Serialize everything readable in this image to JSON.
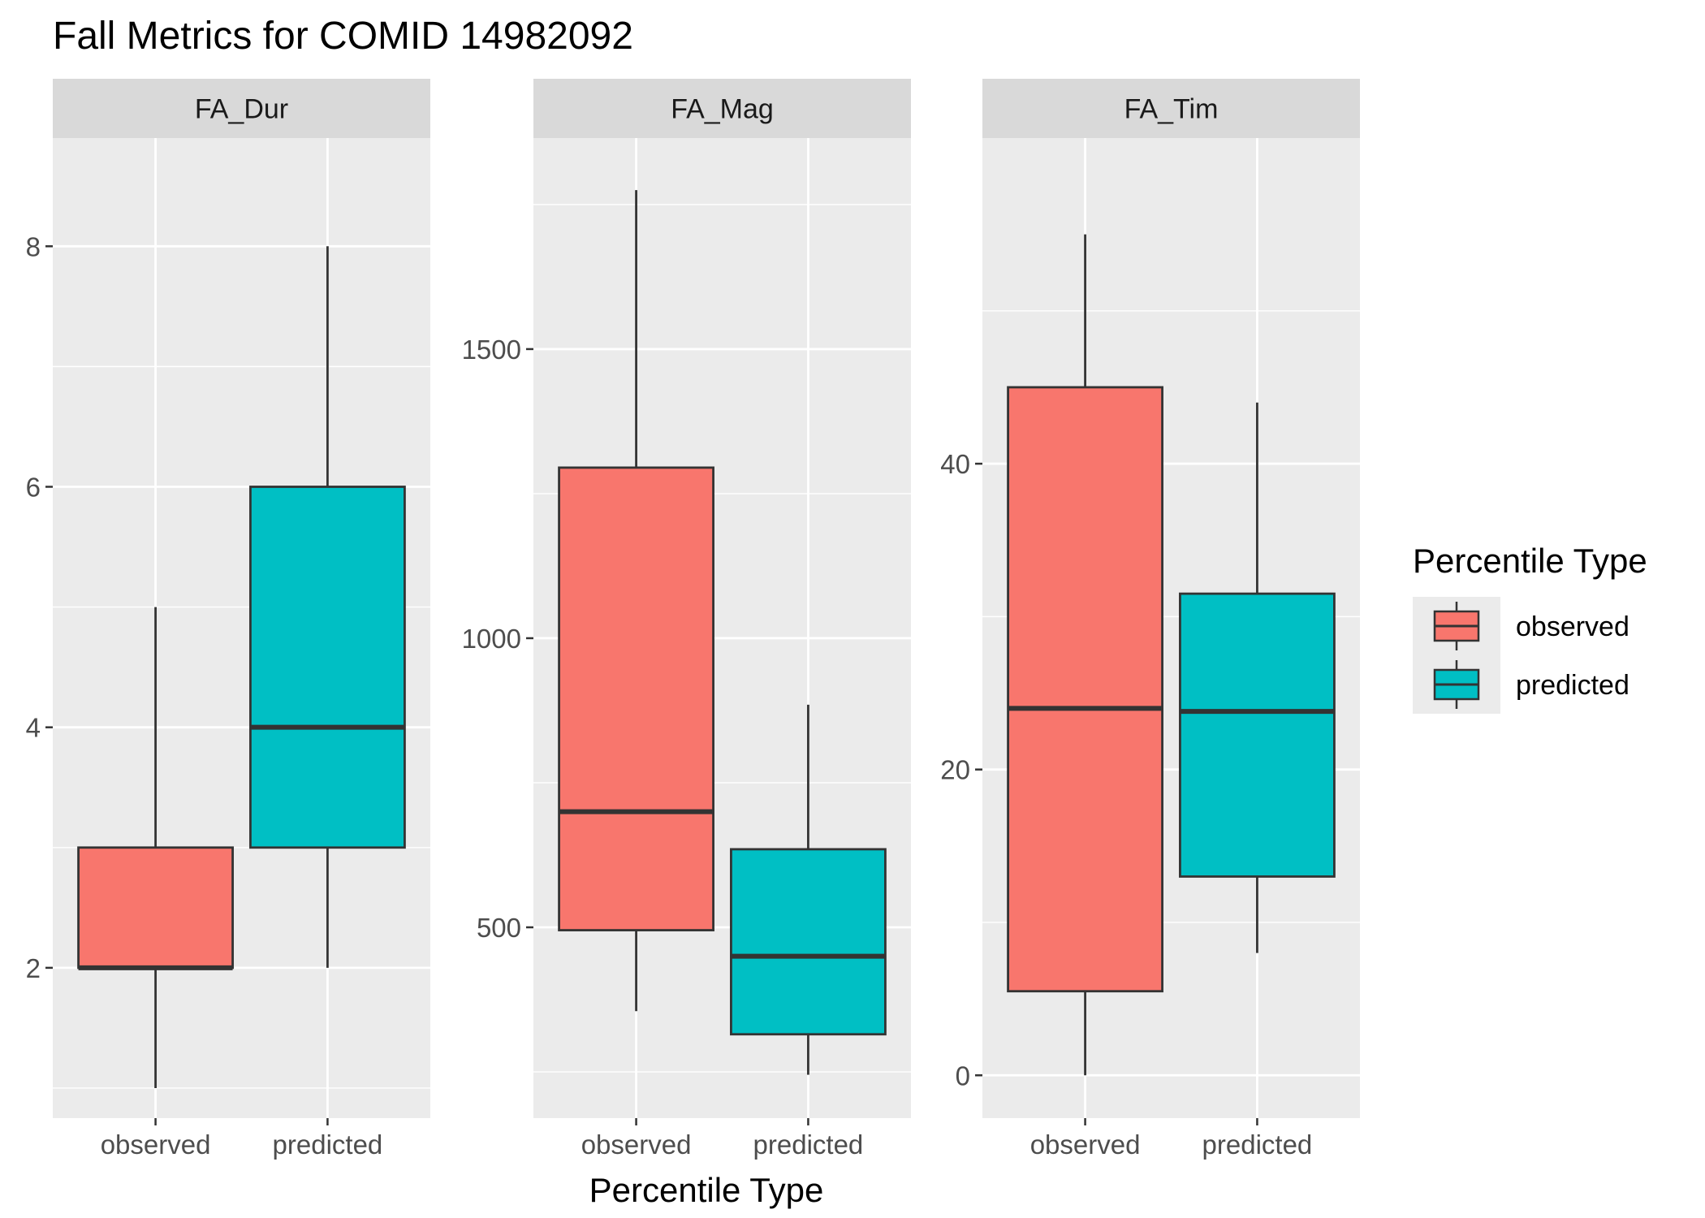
{
  "chart_data": {
    "type": "boxplot",
    "title": "Fall Metrics for COMID 14982092",
    "xlabel": "Percentile Type",
    "ylabel": "",
    "categories": [
      "observed",
      "predicted"
    ],
    "legend": {
      "title": "Percentile Type",
      "position": "right",
      "items": [
        {
          "name": "observed",
          "color": "#F8766D"
        },
        {
          "name": "predicted",
          "color": "#00BFC4"
        }
      ]
    },
    "panels": [
      {
        "label": "FA_Dur",
        "ylim": [
          0.75,
          8.9
        ],
        "yticks": [
          2,
          4,
          6,
          8
        ],
        "ytick_labels": [
          "2",
          "4",
          "6",
          "8"
        ],
        "boxes": [
          {
            "category": "observed",
            "min": 1,
            "q1": 2,
            "median": 2,
            "q3": 3,
            "max": 5
          },
          {
            "category": "predicted",
            "min": 2,
            "q1": 3,
            "median": 4,
            "q3": 6,
            "max": 8
          }
        ]
      },
      {
        "label": "FA_Mag",
        "ylim": [
          170,
          1865
        ],
        "yticks": [
          500,
          1000,
          1500
        ],
        "ytick_labels": [
          "500",
          "1000",
          "1500"
        ],
        "boxes": [
          {
            "category": "observed",
            "min": 355,
            "q1": 495,
            "median": 700,
            "q3": 1295,
            "max": 1775
          },
          {
            "category": "predicted",
            "min": 245,
            "q1": 315,
            "median": 450,
            "q3": 635,
            "max": 885
          }
        ]
      },
      {
        "label": "FA_Tim",
        "ylim": [
          -2.8,
          61.3
        ],
        "yticks": [
          0,
          20,
          40
        ],
        "ytick_labels": [
          "0",
          "20",
          "40"
        ],
        "boxes": [
          {
            "category": "observed",
            "min": 0,
            "q1": 5.5,
            "median": 24,
            "q3": 45,
            "max": 55
          },
          {
            "category": "predicted",
            "min": 8,
            "q1": 13,
            "median": 23.8,
            "q3": 31.5,
            "max": 44
          }
        ]
      }
    ]
  }
}
